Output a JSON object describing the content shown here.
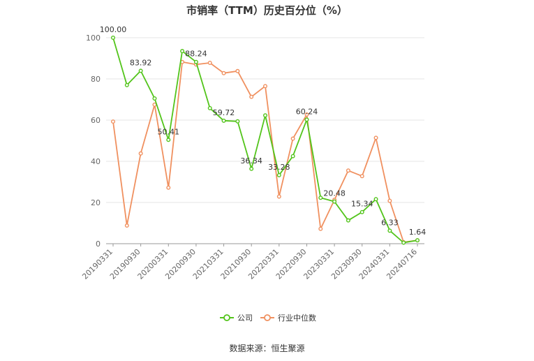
{
  "chart_data": {
    "type": "line",
    "title": "市销率（TTM）历史百分位（%）",
    "source": "数据来源：恒生聚源",
    "ylim": [
      0,
      100
    ],
    "yticks": [
      0,
      20,
      40,
      60,
      80,
      100
    ],
    "xtick_labels": [
      "20190331",
      "20190930",
      "20200331",
      "20200930",
      "20210331",
      "20210930",
      "20220331",
      "20220930",
      "20230331",
      "20230930",
      "20240331",
      "20240716"
    ],
    "x": [
      "20190331",
      "20190630",
      "20190930",
      "20191231",
      "20200331",
      "20200630",
      "20200930",
      "20201231",
      "20210331",
      "20210630",
      "20210930",
      "20211231",
      "20220331",
      "20220630",
      "20220930",
      "20221231",
      "20230331",
      "20230630",
      "20230930",
      "20231231",
      "20240331",
      "20240630",
      "20240716"
    ],
    "grid": true,
    "legend_position": "bottom-center",
    "series": [
      {
        "name": "公司",
        "color": "#52c41a",
        "values": [
          100.0,
          77.0,
          83.92,
          70.5,
          50.41,
          93.5,
          88.24,
          65.8,
          59.72,
          59.4,
          36.34,
          62.3,
          33.28,
          42.5,
          60.24,
          22.3,
          20.48,
          11.3,
          15.34,
          21.6,
          6.33,
          0.5,
          1.64
        ],
        "labels": {
          "0": "100.00",
          "2": "83.92",
          "4": "50.41",
          "6": "88.24",
          "8": "59.72",
          "10": "36.34",
          "12": "33.28",
          "14": "60.24",
          "16": "20.48",
          "18": "15.34",
          "20": "6.33",
          "22": "1.64"
        }
      },
      {
        "name": "行业中位数",
        "color": "#f0905f",
        "values": [
          59.3,
          8.8,
          43.8,
          67.5,
          27.2,
          88.2,
          87.0,
          87.8,
          82.8,
          83.8,
          71.3,
          76.5,
          22.9,
          51.0,
          62.7,
          7.2,
          21.3,
          35.5,
          32.8,
          51.4,
          20.8,
          0.7,
          1.64
        ]
      }
    ]
  }
}
